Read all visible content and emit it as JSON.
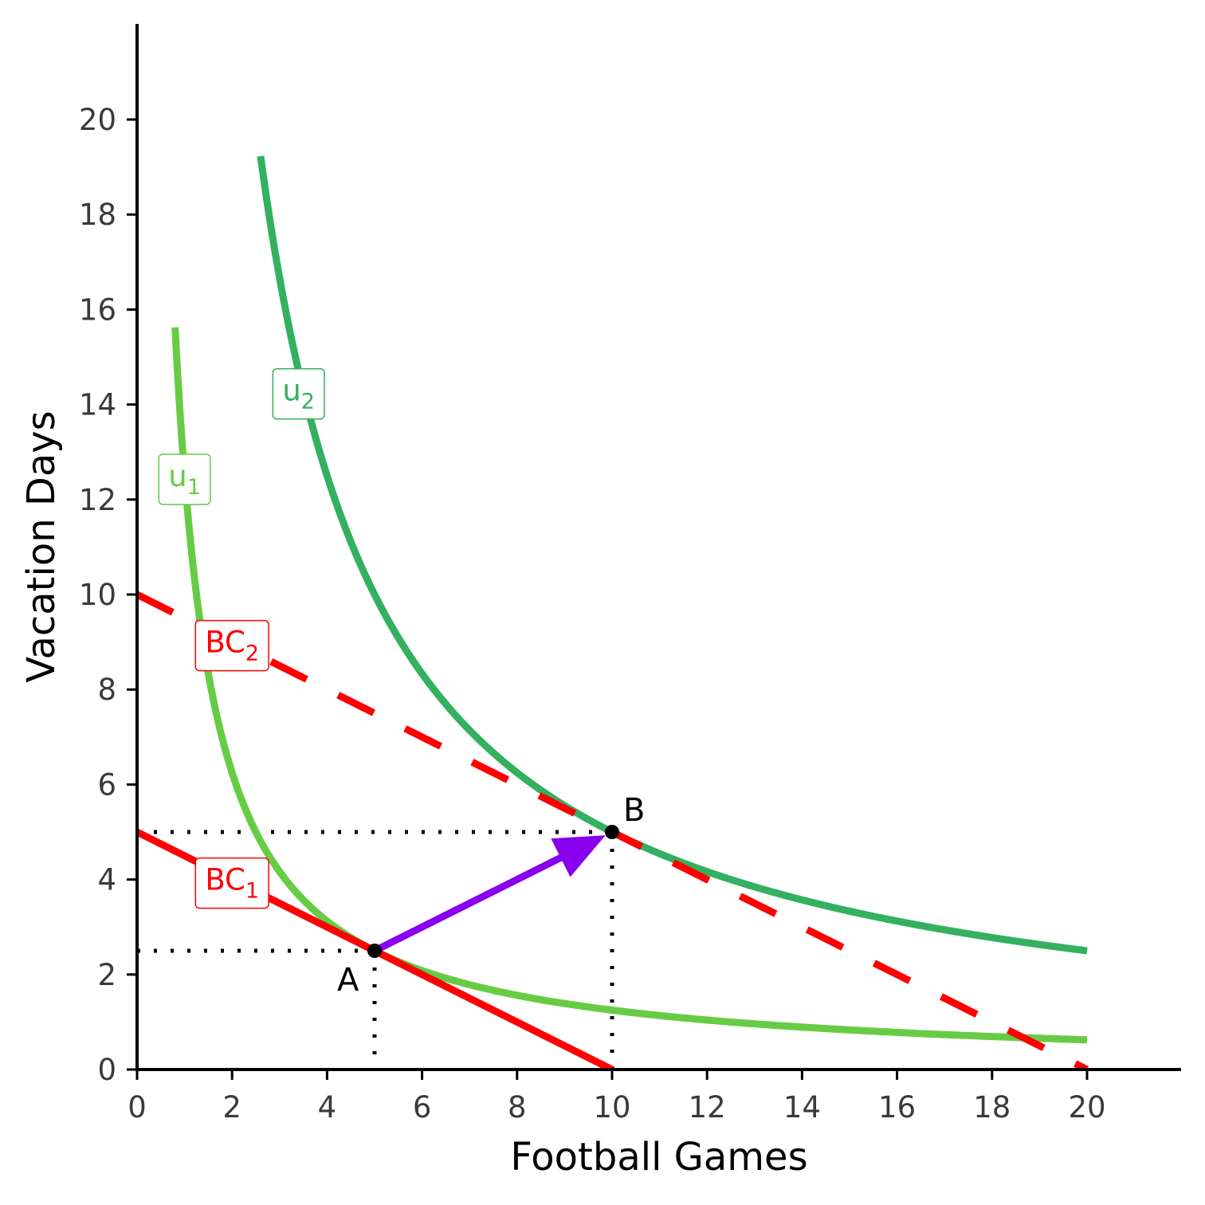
{
  "chart_data": {
    "type": "line",
    "title": "",
    "xlabel": "Football Games",
    "ylabel": "Vacation Days",
    "xlim": [
      0,
      22
    ],
    "ylim": [
      0,
      22
    ],
    "x_ticks": [
      "0",
      "2",
      "4",
      "6",
      "8",
      "10",
      "12",
      "14",
      "16",
      "18",
      "20"
    ],
    "y_ticks": [
      "0",
      "2",
      "4",
      "6",
      "8",
      "10",
      "12",
      "14",
      "16",
      "18",
      "20"
    ],
    "grid": false,
    "series": [
      {
        "name": "u1",
        "label_main": "u",
        "label_sub": "1",
        "kind": "indifference",
        "equation": "x*y = 12.5",
        "k": 12.5,
        "x_range": [
          0.8,
          20
        ],
        "color": "#66cc44",
        "style": "solid",
        "label_at": [
          1.0,
          12.5
        ]
      },
      {
        "name": "u2",
        "label_main": "u",
        "label_sub": "2",
        "kind": "indifference",
        "equation": "x*y = 50",
        "k": 50,
        "x_range": [
          2.6,
          20
        ],
        "color": "#33b060",
        "style": "solid",
        "label_at": [
          3.4,
          14.3
        ]
      },
      {
        "name": "BC1",
        "label_main": "BC",
        "label_sub": "1",
        "kind": "budget",
        "equation": "y = 5 - 0.5x",
        "intercept": 5,
        "slope": -0.5,
        "x_range": [
          0,
          10
        ],
        "color": "#ff0000",
        "style": "solid",
        "label_at": [
          2.0,
          4.0
        ]
      },
      {
        "name": "BC2",
        "label_main": "BC",
        "label_sub": "2",
        "kind": "budget",
        "equation": "y = 10 - 0.5x",
        "intercept": 10,
        "slope": -0.5,
        "x_range": [
          0,
          20
        ],
        "color": "#ff0000",
        "style": "dashed",
        "label_at": [
          2.0,
          9.0
        ]
      }
    ],
    "points": [
      {
        "name": "A",
        "label": "A",
        "x": 5,
        "y": 2.5
      },
      {
        "name": "B",
        "label": "B",
        "x": 10,
        "y": 5
      }
    ],
    "arrow": {
      "from": "A",
      "to": "B",
      "color": "#8800ee"
    }
  }
}
